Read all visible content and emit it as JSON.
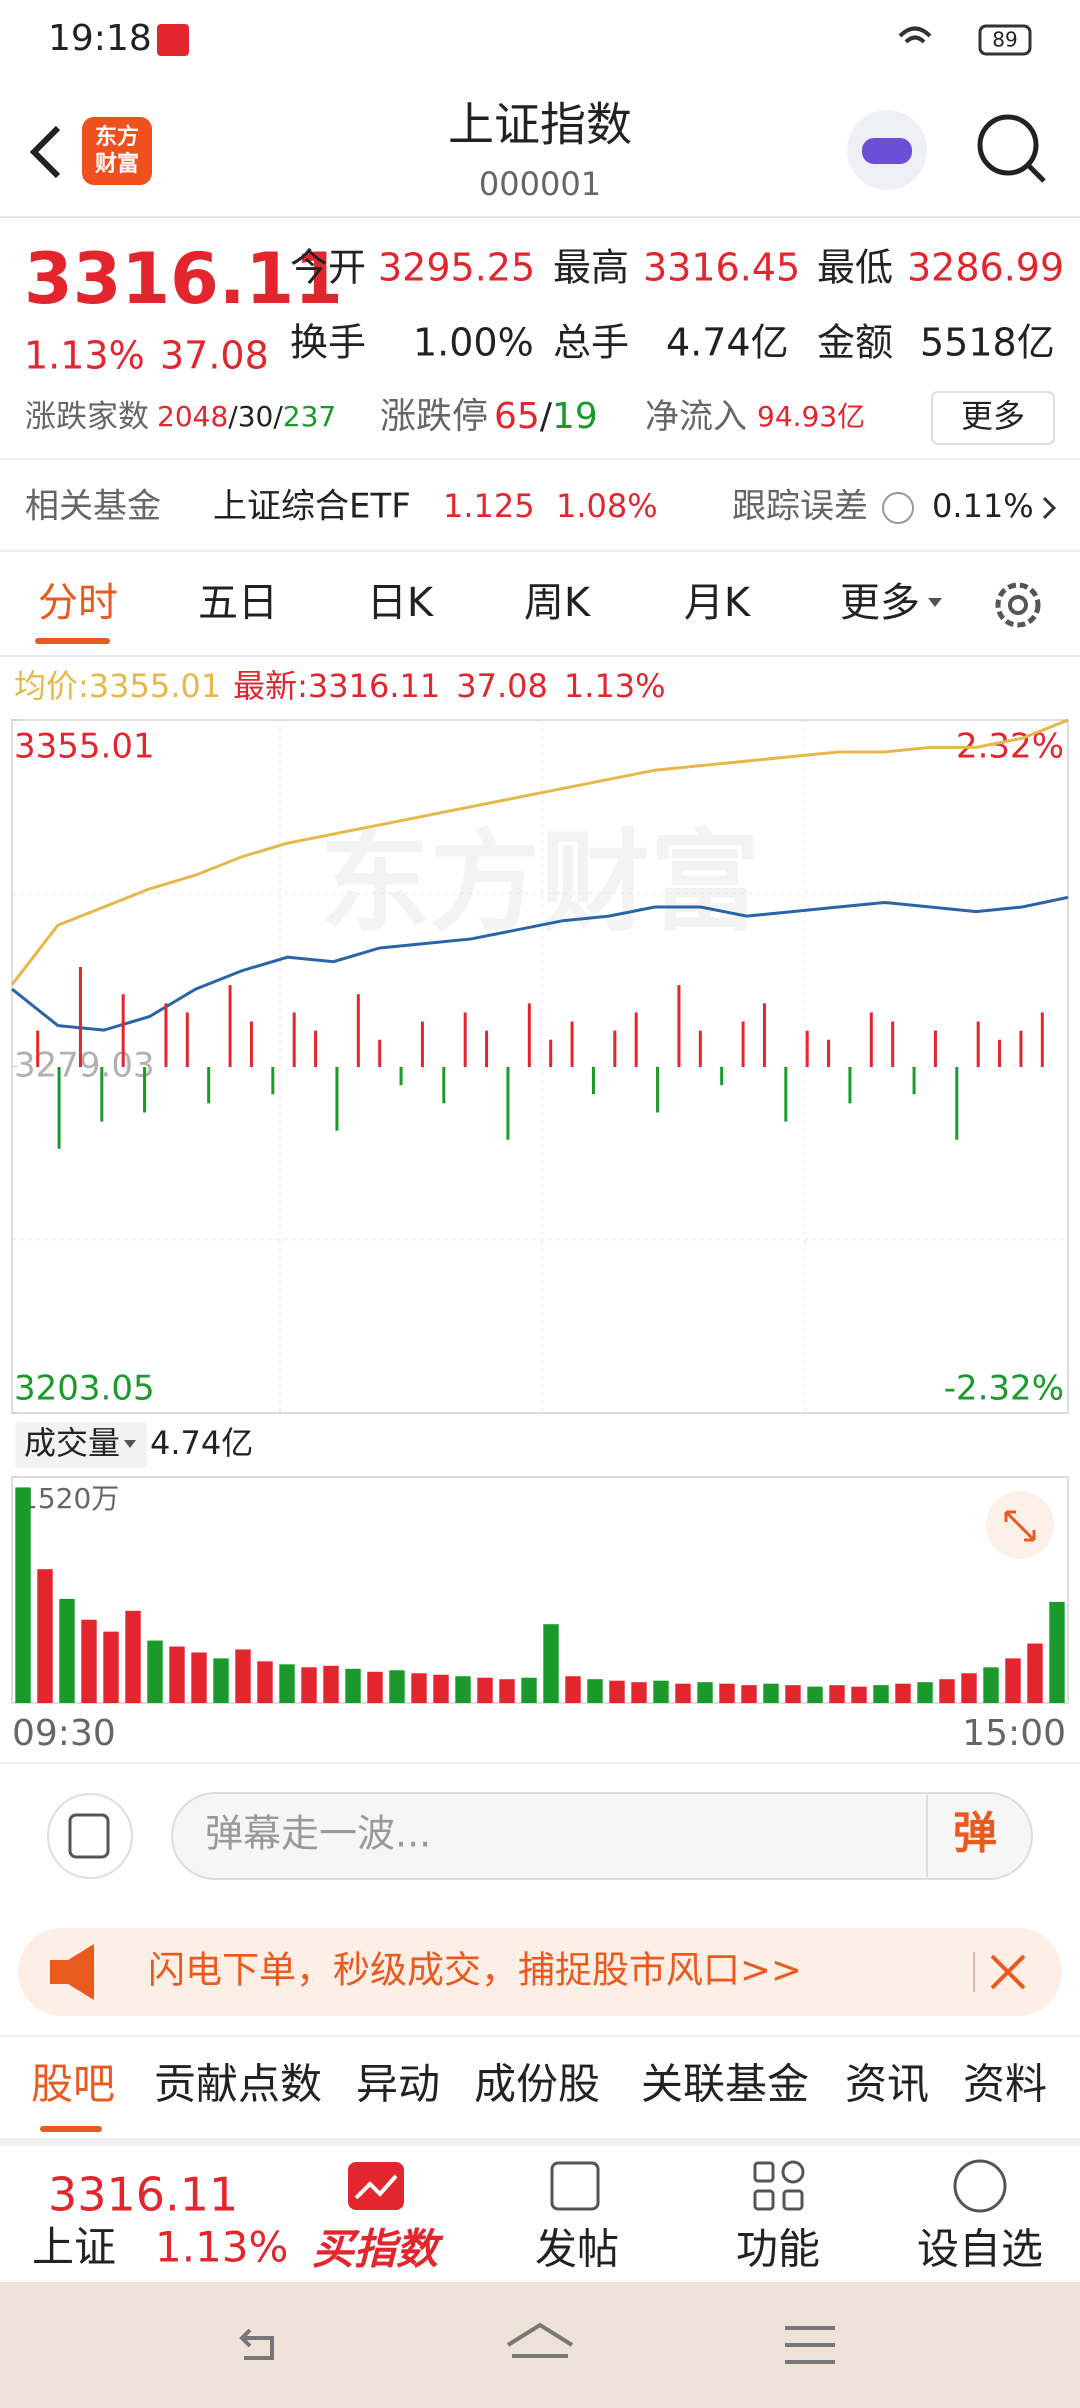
{
  "status_bar": {
    "time": "19:18",
    "battery": "89"
  },
  "header": {
    "logo": [
      "东方",
      "财富"
    ],
    "title": "上证指数",
    "code": "000001"
  },
  "quote": {
    "price": "3316.11",
    "change_pct": "1.13%",
    "change": "37.08",
    "stats": [
      {
        "label": "今开",
        "value": "3295.25"
      },
      {
        "label": "最高",
        "value": "3316.45"
      },
      {
        "label": "最低",
        "value": "3286.99"
      },
      {
        "label": "换手",
        "value": "1.00%"
      },
      {
        "label": "总手",
        "value": "4.74亿"
      },
      {
        "label": "金额",
        "value": "5518亿"
      }
    ],
    "breadth_label": "涨跌家数",
    "breadth_up": "2048",
    "separator": "/",
    "breadth_flat": "30",
    "breadth_down": "237",
    "limit_label": "涨跌停",
    "limit_up": "65",
    "limit_down": "19",
    "netflow_label": "净流入",
    "netflow": "94.93亿",
    "more": "更多"
  },
  "fund": {
    "label": "相关基金",
    "name": "上证综合ETF",
    "price": "1.125",
    "pct": "1.08%",
    "tracking_label": "跟踪误差",
    "tracking": "0.11%"
  },
  "tabs": [
    "分时",
    "五日",
    "日K",
    "周K",
    "月K",
    "更多"
  ],
  "chart_data": [
    {
      "type": "line",
      "legend": {
        "avg_label": "均价:",
        "avg": "3355.01",
        "latest_label": "最新:",
        "latest": "3316.11",
        "change": "37.08",
        "pct": "1.13%"
      },
      "ylim": [
        3203.05,
        3355.01
      ],
      "yticks": [
        3355.01,
        3279.03,
        3203.05
      ],
      "right_labels": [
        "2.32%",
        "-2.32%"
      ],
      "watermark": "东方财富",
      "series": [
        {
          "name": "最新",
          "color": "#2a64a8",
          "values": [
            3296,
            3288,
            3287,
            3290,
            3296,
            3300,
            3303,
            3302,
            3305,
            3306,
            3307,
            3309,
            3311,
            3312,
            3314,
            3314,
            3312,
            3313,
            3314,
            3315,
            3314,
            3313,
            3314,
            3316.11
          ]
        },
        {
          "name": "均价",
          "color": "#e6b84a",
          "values": [
            3297,
            3310,
            3314,
            3318,
            3321,
            3325,
            3328,
            3330,
            3332,
            3334,
            3336,
            3338,
            3340,
            3342,
            3344,
            3345,
            3346,
            3347,
            3348,
            3348,
            3349,
            3349,
            3351,
            3355
          ]
        }
      ]
    },
    {
      "type": "diverging",
      "colors": {
        "up": "#e3262d",
        "down": "#1a9a2a"
      },
      "values": [
        20,
        -45,
        55,
        -30,
        40,
        -25,
        35,
        30,
        -20,
        45,
        25,
        -15,
        30,
        20,
        -35,
        40,
        15,
        -10,
        25,
        -20,
        30,
        20,
        -40,
        35,
        15,
        25,
        -15,
        20,
        30,
        -25,
        45,
        20,
        -10,
        25,
        35,
        -30,
        20,
        15,
        -20,
        30,
        25,
        -15,
        20,
        -40,
        25,
        15,
        20,
        30
      ]
    },
    {
      "type": "bar",
      "label": "成交量",
      "total": "4.74亿",
      "ylim": [
        0,
        1520
      ],
      "yticks": [
        {
          "value": 1520,
          "label": "1520万"
        }
      ],
      "xlabels": [
        "09:30",
        "15:00"
      ],
      "values": [
        1450,
        900,
        700,
        560,
        480,
        620,
        420,
        380,
        340,
        300,
        360,
        280,
        260,
        240,
        250,
        230,
        210,
        220,
        200,
        190,
        180,
        170,
        160,
        170,
        530,
        180,
        160,
        150,
        140,
        150,
        130,
        140,
        130,
        120,
        130,
        120,
        110,
        120,
        110,
        120,
        130,
        140,
        160,
        200,
        240,
        300,
        400,
        680
      ],
      "colors": [
        "#1a9a2a",
        "#e3262d",
        "#1a9a2a",
        "#e3262d",
        "#e3262d",
        "#e3262d",
        "#1a9a2a",
        "#e3262d",
        "#e3262d",
        "#1a9a2a",
        "#e3262d",
        "#e3262d",
        "#1a9a2a",
        "#e3262d",
        "#e3262d",
        "#1a9a2a",
        "#e3262d",
        "#1a9a2a",
        "#e3262d",
        "#e3262d",
        "#1a9a2a",
        "#e3262d",
        "#e3262d",
        "#1a9a2a",
        "#1a9a2a",
        "#e3262d",
        "#1a9a2a",
        "#e3262d",
        "#e3262d",
        "#1a9a2a",
        "#e3262d",
        "#1a9a2a",
        "#e3262d",
        "#e3262d",
        "#1a9a2a",
        "#e3262d",
        "#1a9a2a",
        "#e3262d",
        "#e3262d",
        "#1a9a2a",
        "#e3262d",
        "#1a9a2a",
        "#e3262d",
        "#e3262d",
        "#1a9a2a",
        "#e3262d",
        "#e3262d",
        "#1a9a2a"
      ]
    }
  ],
  "comment": {
    "placeholder": "弹幕走一波...",
    "send": "弹"
  },
  "banner": {
    "text": "闪电下单，秒级成交，捕捉股市风口>>"
  },
  "sub_tabs": [
    "股吧",
    "贡献点数",
    "异动",
    "成份股",
    "关联基金",
    "资讯",
    "资料"
  ],
  "bottom_nav": {
    "price": "3316.11",
    "name": "上证",
    "pct": "1.13%",
    "items": [
      "买指数",
      "发帖",
      "功能",
      "设自选"
    ]
  }
}
